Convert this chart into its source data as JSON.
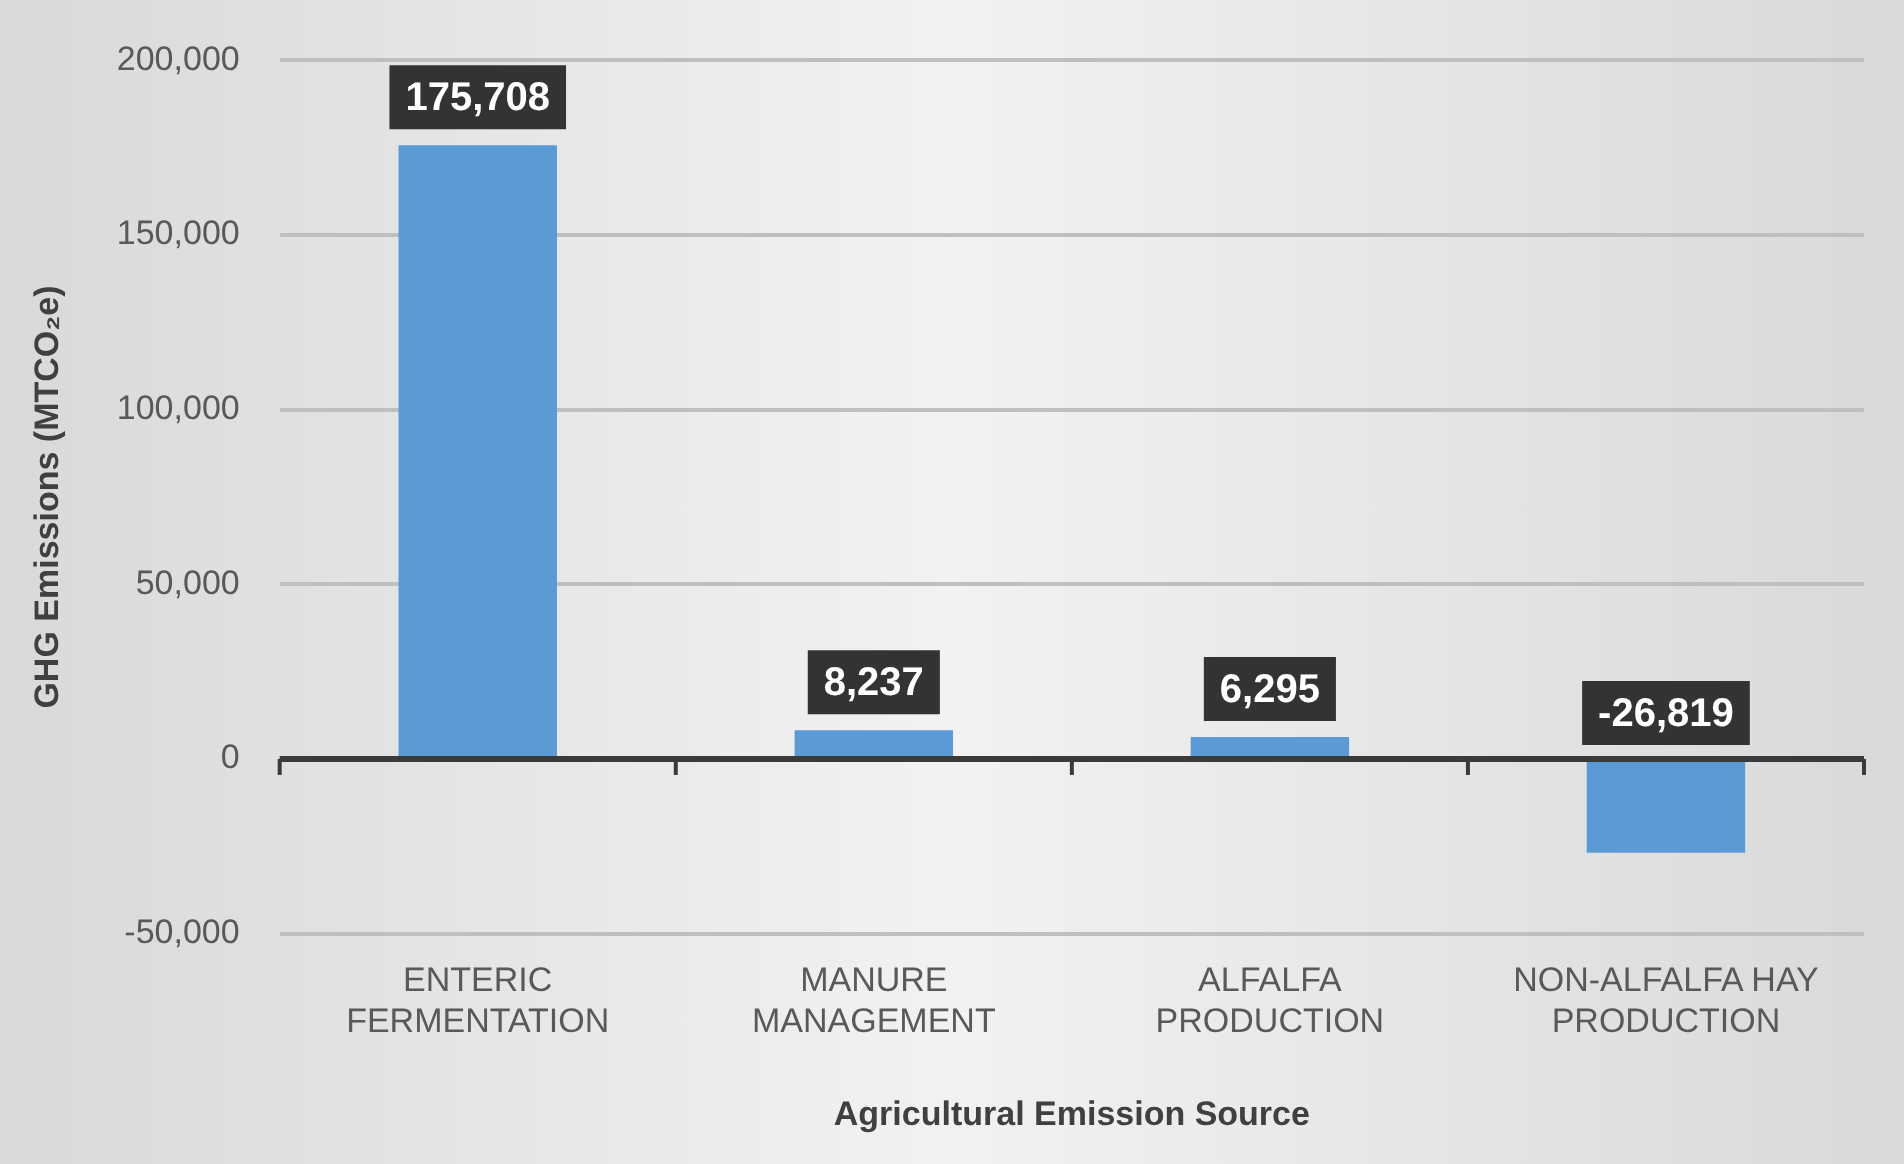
{
  "chart_data": {
    "type": "bar",
    "xlabel": "Agricultural Emission Source",
    "ylabel": "GHG Emissions (MTCO₂e)",
    "categories": [
      "ENTERIC FERMENTATION",
      "MANURE MANAGEMENT",
      "ALFALFA PRODUCTION",
      "NON-ALFALFA HAY PRODUCTION"
    ],
    "values": [
      175708,
      8237,
      6295,
      -26819
    ],
    "value_labels": [
      "175,708",
      "8,237",
      "6,295",
      "-26,819"
    ],
    "color": "#5b9bd5",
    "ylim": [
      -50000,
      200000
    ],
    "yticks": [
      {
        "value": -50000,
        "label": "-50,000"
      },
      0,
      {
        "value": 50000,
        "label": "50,000"
      },
      {
        "value": 100000,
        "label": "100,000"
      },
      {
        "value": 150000,
        "label": "150,000"
      },
      {
        "value": 200000,
        "label": "200,000"
      }
    ],
    "grid": "y",
    "legend": false
  }
}
